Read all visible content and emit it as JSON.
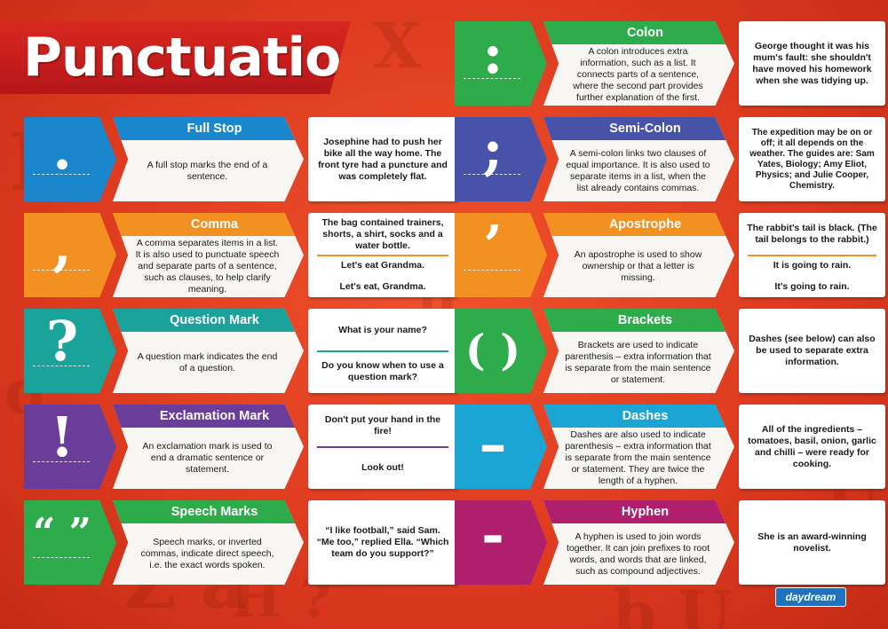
{
  "title": "Punctuation",
  "colors": {
    "blue": "#1a87cc",
    "orange": "#f39022",
    "teal": "#1aa39a",
    "purple": "#6b3d9a",
    "green": "#2eab4a",
    "indigo": "#4753a8",
    "cyan": "#1aa5d4",
    "magenta": "#b01e6e"
  },
  "left_column": [
    {
      "symbol": ".",
      "header": "Full Stop",
      "color": "#1a87cc",
      "definition": "A full stop marks the end of a sentence.",
      "examples": [
        "Josephine had to push her bike all the way home. The front tyre had a puncture and was completely flat."
      ]
    },
    {
      "symbol": ",",
      "header": "Comma",
      "color": "#f39022",
      "definition": "A comma separates items in a list. It is also used to punctuate speech and separate parts of a sentence, such as clauses, to help clarify meaning.",
      "examples": [
        "The bag contained trainers, shorts, a shirt, socks and a water bottle.",
        "Let's eat Grandma.",
        "Let's eat, Grandma."
      ]
    },
    {
      "symbol": "?",
      "header": "Question Mark",
      "color": "#1aa39a",
      "definition": "A question mark indicates the end of a question.",
      "examples": [
        "What is your name?",
        "Do you know when to use a question mark?"
      ]
    },
    {
      "symbol": "!",
      "header": "Exclamation Mark",
      "color": "#6b3d9a",
      "definition": "An exclamation mark is used to end a dramatic sentence or statement.",
      "examples": [
        "Don't put your hand in the fire!",
        "Look out!"
      ]
    },
    {
      "symbol": "“ ”",
      "header": "Speech Marks",
      "color": "#2eab4a",
      "definition": "Speech marks, or inverted commas, indicate direct speech, i.e. the exact words spoken.",
      "examples": [
        "“I like football,” said Sam. “Me too,” replied Ella. “Which team do you support?”"
      ]
    }
  ],
  "right_column": [
    {
      "symbol": ":",
      "header": "Colon",
      "color": "#2eab4a",
      "definition": "A colon introduces extra information, such as a list. It connects parts of a sentence, where the second part provides further explanation of the first.",
      "examples": [
        "George thought it was his mum's fault: she shouldn't have moved his homework when she was tidying up."
      ]
    },
    {
      "symbol": ";",
      "header": "Semi-Colon",
      "color": "#4753a8",
      "definition": "A semi-colon links two clauses of equal importance. It is also used to separate items in a list, when the list already contains commas.",
      "examples": [
        "The expedition may be on or off; it all depends on the weather. The guides are: Sam Yates, Biology; Amy Eliot, Physics; and Julie Cooper, Chemistry."
      ]
    },
    {
      "symbol": "’",
      "header": "Apostrophe",
      "color": "#f39022",
      "definition": "An apostrophe is used to show ownership or that a letter is missing.",
      "examples": [
        "The rabbit's tail is black. (The tail belongs to the rabbit.)",
        "It is going to rain.",
        "It's going to rain."
      ]
    },
    {
      "symbol": "( )",
      "header": "Brackets",
      "color": "#2eab4a",
      "definition": "Brackets are used to indicate parenthesis – extra information that is separate from the main sentence or statement.",
      "examples": [
        "Dashes (see below) can also be used to separate extra information."
      ]
    },
    {
      "symbol": "–",
      "header": "Dashes",
      "color": "#1aa5d4",
      "definition": "Dashes are also used to indicate parenthesis – extra information that is separate from the main sentence or statement. They are twice the length of a hyphen.",
      "examples": [
        "All of the ingredients – tomatoes, basil, onion, garlic and chilli – were ready for cooking."
      ]
    },
    {
      "symbol": "-",
      "header": "Hyphen",
      "color": "#b01e6e",
      "definition": "A hyphen is used to join words together. It can join prefixes to root words, and words that are linked, such as compound adjectives.",
      "examples": [
        "She is an award-winning novelist."
      ]
    }
  ],
  "brand": "daydream"
}
